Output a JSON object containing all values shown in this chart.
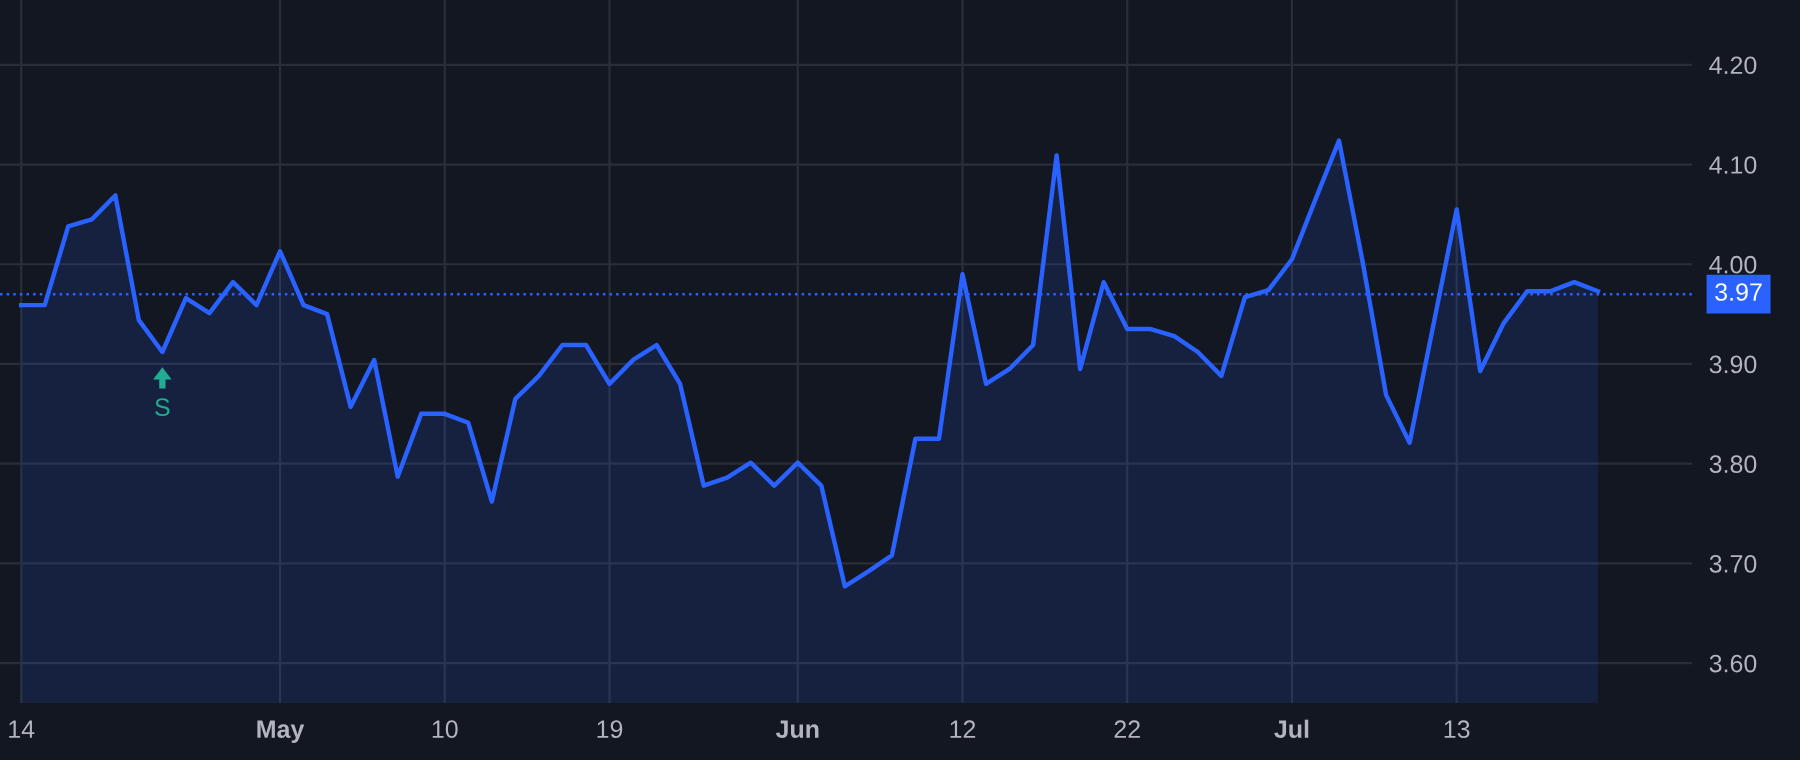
{
  "chart_data": {
    "type": "area",
    "categories": [
      "14",
      null,
      null,
      null,
      null,
      null,
      null,
      null,
      null,
      null,
      null,
      "May",
      null,
      null,
      null,
      null,
      null,
      null,
      "10",
      null,
      null,
      null,
      null,
      null,
      null,
      "19",
      null,
      null,
      null,
      null,
      null,
      null,
      null,
      "Jun",
      null,
      null,
      null,
      null,
      null,
      null,
      "12",
      null,
      null,
      null,
      null,
      null,
      null,
      "22",
      null,
      null,
      null,
      null,
      null,
      null,
      "Jul",
      null,
      null,
      null,
      null,
      null,
      null,
      "13",
      null,
      null,
      null,
      null,
      null,
      null
    ],
    "series": [
      {
        "color": "#2962ff",
        "values": [
          3.959,
          3.959,
          4.038,
          4.045,
          4.069,
          3.944,
          3.912,
          3.966,
          3.951,
          3.982,
          3.959,
          4.013,
          3.959,
          3.95,
          3.857,
          3.904,
          3.787,
          3.85,
          3.85,
          3.841,
          3.762,
          3.865,
          3.888,
          3.919,
          3.919,
          3.88,
          3.904,
          3.919,
          3.88,
          3.778,
          3.786,
          3.801,
          3.778,
          3.801,
          3.778,
          3.677,
          3.692,
          3.708,
          3.825,
          3.825,
          3.99,
          3.88,
          3.895,
          3.919,
          4.109,
          3.895,
          3.982,
          3.935,
          3.935,
          3.928,
          3.912,
          3.888,
          3.967,
          3.974,
          4.005,
          4.065,
          4.124,
          4.003,
          3.869,
          3.821,
          3.938,
          4.055,
          3.893,
          3.941,
          3.973,
          3.973,
          3.982,
          3.973
        ]
      }
    ],
    "ylim": [
      3.56,
      4.265
    ],
    "yticks": [
      {
        "value": 3.6,
        "label": "3.60"
      },
      {
        "value": 3.7,
        "label": "3.70"
      },
      {
        "value": 3.8,
        "label": "3.80"
      },
      {
        "value": 3.9,
        "label": "3.90"
      },
      {
        "value": 4.0,
        "label": "4.00"
      },
      {
        "value": 4.1,
        "label": "4.10"
      },
      {
        "value": 4.2,
        "label": "4.20"
      }
    ],
    "ref_lines": [
      {
        "axis": "y",
        "value": 3.97,
        "label": "3.97",
        "color": "#2962ff",
        "line_style": "dotted"
      }
    ],
    "annotations": [
      {
        "text": "S",
        "y": 3.912
      }
    ],
    "grid": true,
    "line_style": "solid",
    "marker": "none"
  }
}
